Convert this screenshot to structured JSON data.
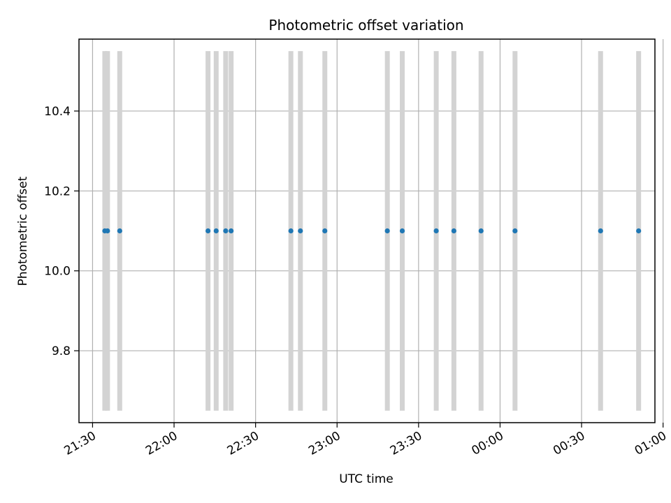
{
  "chart_data": {
    "type": "scatter",
    "title": "Photometric offset variation",
    "xlabel": "UTC time",
    "ylabel": "Photometric offset",
    "x_axis": "time",
    "xlim": [
      "21:25",
      "00:57"
    ],
    "ylim": [
      9.62,
      10.58
    ],
    "x_ticks": [
      "21:30",
      "22:00",
      "22:30",
      "23:00",
      "23:30",
      "00:00",
      "00:30",
      "01:00"
    ],
    "y_ticks": [
      9.8,
      10.0,
      10.2,
      10.4
    ],
    "y_tick_labels": [
      "9.8",
      "10.0",
      "10.2",
      "10.4"
    ],
    "grid": true,
    "point_color": "#1f77b4",
    "band_color": "#d3d3d3",
    "band_ymin": 9.65,
    "band_ymax": 10.55,
    "series": [
      {
        "x": [
          "21:34:30",
          "21:35:30",
          "21:40:00",
          "22:12:30",
          "22:15:30",
          "22:19:00",
          "22:21:00",
          "22:43:00",
          "22:46:30",
          "22:55:30",
          "23:18:30",
          "23:24:00",
          "23:36:30",
          "23:43:00",
          "23:53:00",
          "00:05:30",
          "00:37:00",
          "00:51:00"
        ],
        "y": [
          10.1,
          10.1,
          10.1,
          10.1,
          10.1,
          10.1,
          10.1,
          10.1,
          10.1,
          10.1,
          10.1,
          10.1,
          10.1,
          10.1,
          10.1,
          10.1,
          10.1,
          10.1
        ]
      }
    ]
  }
}
